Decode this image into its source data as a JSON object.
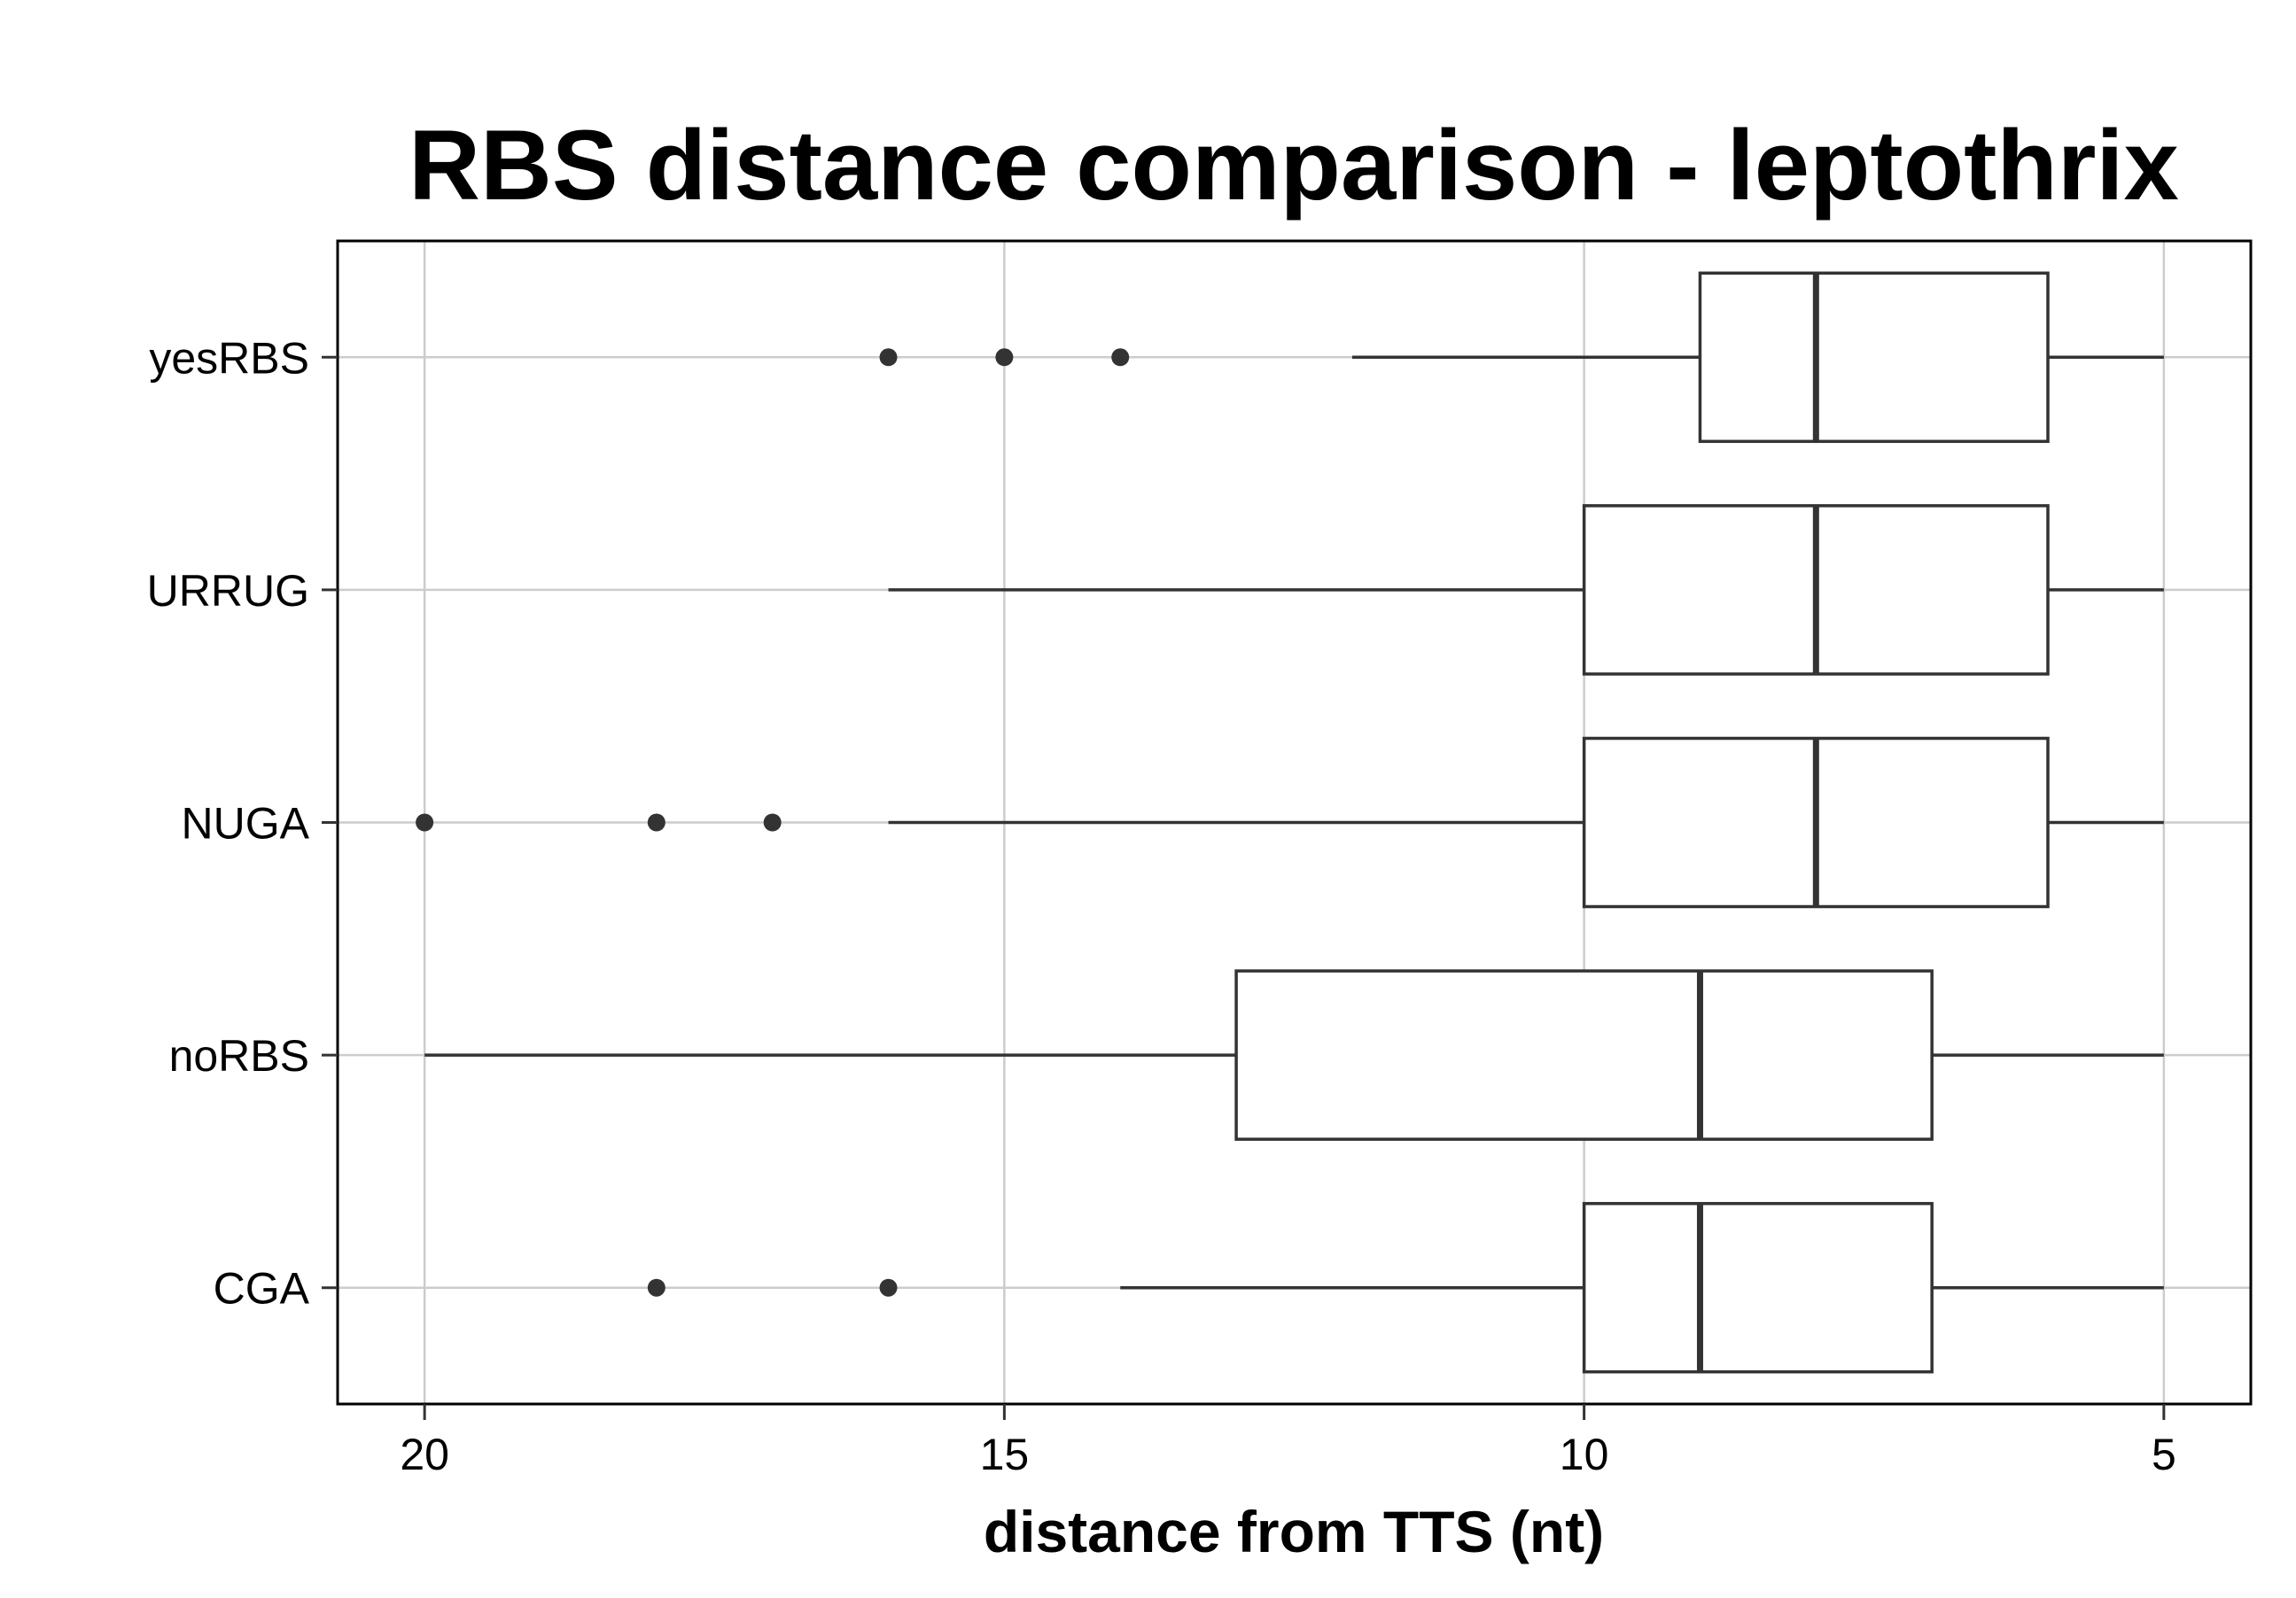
{
  "chart_data": {
    "type": "boxplot",
    "title": "RBS distance comparison - leptothrix",
    "xlabel": "distance from TTS (nt)",
    "ylabel": "",
    "x_reversed": true,
    "xlim": [
      20.75,
      4.25
    ],
    "x_ticks": [
      20,
      15,
      10,
      5
    ],
    "x_tick_labels": [
      "20",
      "15",
      "10",
      "5"
    ],
    "grid": true,
    "legend": "none",
    "categories": [
      "yesRBS",
      "URRUG",
      "NUGA",
      "noRBS",
      "CGA"
    ],
    "boxes": [
      {
        "category": "yesRBS",
        "whisker_low": 5,
        "q1": 6,
        "median": 8,
        "q3": 9,
        "whisker_high": 12,
        "outliers": [
          14,
          15,
          16
        ]
      },
      {
        "category": "URRUG",
        "whisker_low": 5,
        "q1": 6,
        "median": 8,
        "q3": 10,
        "whisker_high": 16,
        "outliers": []
      },
      {
        "category": "NUGA",
        "whisker_low": 5,
        "q1": 6,
        "median": 8,
        "q3": 10,
        "whisker_high": 16,
        "outliers": [
          17,
          18,
          20
        ]
      },
      {
        "category": "noRBS",
        "whisker_low": 5,
        "q1": 7,
        "median": 9,
        "q3": 13,
        "whisker_high": 20,
        "outliers": []
      },
      {
        "category": "CGA",
        "whisker_low": 5,
        "q1": 7,
        "median": 9,
        "q3": 10,
        "whisker_high": 14,
        "outliers": [
          16,
          18
        ]
      }
    ],
    "colors": {
      "box_stroke": "#333333",
      "box_fill": "#ffffff",
      "outlier": "#333333",
      "grid": "#cccccc",
      "panel_border": "#000000"
    }
  }
}
